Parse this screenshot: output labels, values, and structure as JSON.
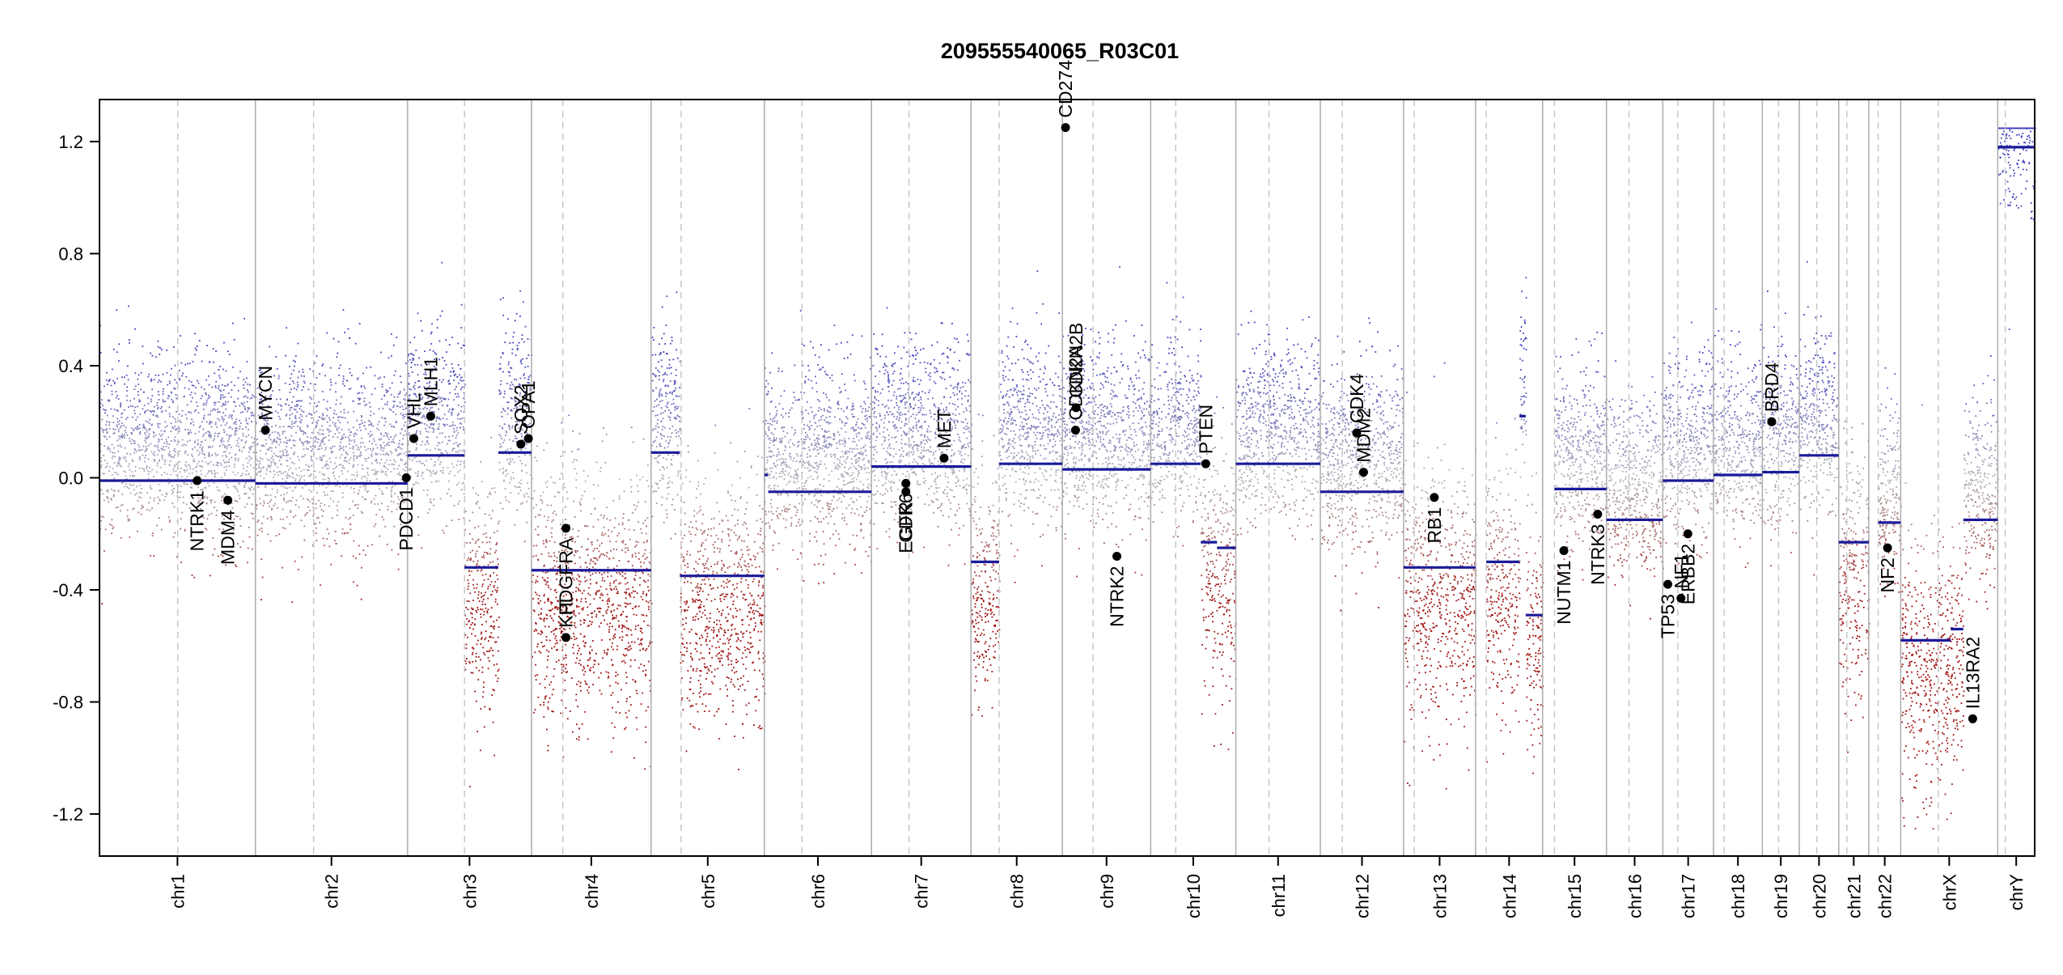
{
  "chart_data": {
    "type": "scatter",
    "title": "209555540065_R03C01",
    "xlabel": "",
    "ylabel": "",
    "ylim": [
      -1.35,
      1.35
    ],
    "yticks": [
      "-1.2",
      "-0.8",
      "-0.4",
      "0.0",
      "0.4",
      "0.8",
      "1.2"
    ],
    "ytick_values": [
      -1.2,
      -0.8,
      -0.4,
      0.0,
      0.4,
      0.8,
      1.2
    ],
    "grid": "vertical chromosome boundaries (solid) and centromeres (dashed)",
    "colors": {
      "gain": "#3b3bb5",
      "loss": "#a01010",
      "neutral": "#9a9a9a",
      "segment": "#1a1a9a",
      "gene": "#000000",
      "frame": "#000000"
    },
    "chromosomes": [
      {
        "name": "chr1",
        "length": 249,
        "centromere": 125
      },
      {
        "name": "chr2",
        "length": 243,
        "centromere": 93
      },
      {
        "name": "chr3",
        "length": 198,
        "centromere": 91
      },
      {
        "name": "chr4",
        "length": 191,
        "centromere": 50
      },
      {
        "name": "chr5",
        "length": 181,
        "centromere": 48
      },
      {
        "name": "chr6",
        "length": 171,
        "centromere": 60
      },
      {
        "name": "chr7",
        "length": 159,
        "centromere": 60
      },
      {
        "name": "chr8",
        "length": 146,
        "centromere": 45
      },
      {
        "name": "chr9",
        "length": 141,
        "centromere": 49
      },
      {
        "name": "chr10",
        "length": 136,
        "centromere": 40
      },
      {
        "name": "chr11",
        "length": 135,
        "centromere": 53
      },
      {
        "name": "chr12",
        "length": 133,
        "centromere": 35
      },
      {
        "name": "chr13",
        "length": 115,
        "centromere": 17
      },
      {
        "name": "chr14",
        "length": 107,
        "centromere": 17
      },
      {
        "name": "chr15",
        "length": 102,
        "centromere": 19
      },
      {
        "name": "chr16",
        "length": 90,
        "centromere": 36
      },
      {
        "name": "chr17",
        "length": 81,
        "centromere": 24
      },
      {
        "name": "chr18",
        "length": 78,
        "centromere": 17
      },
      {
        "name": "chr19",
        "length": 59,
        "centromere": 26
      },
      {
        "name": "chr20",
        "length": 63,
        "centromere": 28
      },
      {
        "name": "chr21",
        "length": 48,
        "centromere": 13
      },
      {
        "name": "chr22",
        "length": 51,
        "centromere": 15
      },
      {
        "name": "chrX",
        "length": 155,
        "centromere": 60
      },
      {
        "name": "chrY",
        "length": 59,
        "centromere": 12
      }
    ],
    "segments": [
      {
        "chr": "chr1",
        "start": 0,
        "end": 249,
        "value": -0.01
      },
      {
        "chr": "chr2",
        "start": 0,
        "end": 243,
        "value": -0.02
      },
      {
        "chr": "chr3",
        "start": 0,
        "end": 91,
        "value": 0.08
      },
      {
        "chr": "chr3",
        "start": 91,
        "end": 145,
        "value": -0.32
      },
      {
        "chr": "chr3",
        "start": 145,
        "end": 198,
        "value": 0.09
      },
      {
        "chr": "chr4",
        "start": 0,
        "end": 191,
        "value": -0.33
      },
      {
        "chr": "chr5",
        "start": 0,
        "end": 46,
        "value": 0.09
      },
      {
        "chr": "chr5",
        "start": 46,
        "end": 181,
        "value": -0.35
      },
      {
        "chr": "chr6",
        "start": 0,
        "end": 6,
        "value": 0.01
      },
      {
        "chr": "chr6",
        "start": 6,
        "end": 171,
        "value": -0.05
      },
      {
        "chr": "chr7",
        "start": 0,
        "end": 159,
        "value": 0.04
      },
      {
        "chr": "chr8",
        "start": 0,
        "end": 45,
        "value": -0.3
      },
      {
        "chr": "chr8",
        "start": 45,
        "end": 146,
        "value": 0.05
      },
      {
        "chr": "chr9",
        "start": 0,
        "end": 141,
        "value": 0.03
      },
      {
        "chr": "chr10",
        "start": 0,
        "end": 80,
        "value": 0.05
      },
      {
        "chr": "chr10",
        "start": 80,
        "end": 106,
        "value": -0.23
      },
      {
        "chr": "chr10",
        "start": 106,
        "end": 136,
        "value": -0.25
      },
      {
        "chr": "chr11",
        "start": 0,
        "end": 135,
        "value": 0.05
      },
      {
        "chr": "chr12",
        "start": 0,
        "end": 133,
        "value": -0.05
      },
      {
        "chr": "chr13",
        "start": 0,
        "end": 115,
        "value": -0.32
      },
      {
        "chr": "chr14",
        "start": 17,
        "end": 70,
        "value": -0.3
      },
      {
        "chr": "chr14",
        "start": 70,
        "end": 80,
        "value": 0.22
      },
      {
        "chr": "chr14",
        "start": 80,
        "end": 107,
        "value": -0.49
      },
      {
        "chr": "chr15",
        "start": 19,
        "end": 102,
        "value": -0.04
      },
      {
        "chr": "chr16",
        "start": 0,
        "end": 90,
        "value": -0.15
      },
      {
        "chr": "chr17",
        "start": 0,
        "end": 24,
        "value": -0.01
      },
      {
        "chr": "chr17",
        "start": 24,
        "end": 81,
        "value": -0.01
      },
      {
        "chr": "chr18",
        "start": 0,
        "end": 78,
        "value": 0.01
      },
      {
        "chr": "chr19",
        "start": 0,
        "end": 59,
        "value": 0.02
      },
      {
        "chr": "chr20",
        "start": 0,
        "end": 63,
        "value": 0.08
      },
      {
        "chr": "chr21",
        "start": 0,
        "end": 48,
        "value": -0.23
      },
      {
        "chr": "chr22",
        "start": 15,
        "end": 51,
        "value": -0.16
      },
      {
        "chr": "chrX",
        "start": 0,
        "end": 80,
        "value": -0.58
      },
      {
        "chr": "chrX",
        "start": 80,
        "end": 100,
        "value": -0.54
      },
      {
        "chr": "chrX",
        "start": 100,
        "end": 155,
        "value": -0.15
      },
      {
        "chr": "chrY",
        "start": 0,
        "end": 59,
        "value": 1.18
      }
    ],
    "genes": [
      {
        "name": "NTRK1",
        "chr": "chr1",
        "pos": 156,
        "value": -0.01,
        "label_side": "below"
      },
      {
        "name": "MDM4",
        "chr": "chr1",
        "pos": 205,
        "value": -0.08,
        "label_side": "below"
      },
      {
        "name": "MYCN",
        "chr": "chr2",
        "pos": 16,
        "value": 0.17,
        "label_side": "above"
      },
      {
        "name": "PDCD1",
        "chr": "chr2",
        "pos": 241,
        "value": 0.0,
        "label_side": "below"
      },
      {
        "name": "VHL",
        "chr": "chr3",
        "pos": 10,
        "value": 0.14,
        "label_side": "above"
      },
      {
        "name": "MLH1",
        "chr": "chr3",
        "pos": 37,
        "value": 0.22,
        "label_side": "above"
      },
      {
        "name": "SOX2",
        "chr": "chr3",
        "pos": 181,
        "value": 0.12,
        "label_side": "above"
      },
      {
        "name": "OPA1",
        "chr": "chr3",
        "pos": 193,
        "value": 0.14,
        "label_side": "above"
      },
      {
        "name": "PDGFRA",
        "chr": "chr4",
        "pos": 55,
        "value": -0.18,
        "label_side": "below"
      },
      {
        "name": "KIT",
        "chr": "chr4",
        "pos": 55,
        "value": -0.57,
        "label_side": "above"
      },
      {
        "name": "EGFR",
        "chr": "chr7",
        "pos": 55,
        "value": -0.05,
        "label_side": "below"
      },
      {
        "name": "CDK6",
        "chr": "chr7",
        "pos": 55,
        "value": -0.02,
        "label_side": "below"
      },
      {
        "name": "MET",
        "chr": "chr7",
        "pos": 116,
        "value": 0.07,
        "label_side": "above"
      },
      {
        "name": "CD274",
        "chr": "chr9",
        "pos": 5,
        "value": 1.25,
        "label_side": "above"
      },
      {
        "name": "CDKN2A",
        "chr": "chr9",
        "pos": 21,
        "value": 0.17,
        "label_side": "above"
      },
      {
        "name": "CDKN2B",
        "chr": "chr9",
        "pos": 22,
        "value": 0.25,
        "label_side": "above"
      },
      {
        "name": "NTRK2",
        "chr": "chr9",
        "pos": 87,
        "value": -0.28,
        "label_side": "below"
      },
      {
        "name": "PTEN",
        "chr": "chr10",
        "pos": 88,
        "value": 0.05,
        "label_side": "above"
      },
      {
        "name": "CDK4",
        "chr": "chr12",
        "pos": 58,
        "value": 0.16,
        "label_side": "above"
      },
      {
        "name": "MDM2",
        "chr": "chr12",
        "pos": 69,
        "value": 0.02,
        "label_side": "above"
      },
      {
        "name": "RB1",
        "chr": "chr13",
        "pos": 49,
        "value": -0.07,
        "label_side": "below"
      },
      {
        "name": "NUTM1",
        "chr": "chr15",
        "pos": 34,
        "value": -0.26,
        "label_side": "below"
      },
      {
        "name": "NTRK3",
        "chr": "chr15",
        "pos": 88,
        "value": -0.13,
        "label_side": "below"
      },
      {
        "name": "TP53",
        "chr": "chr17",
        "pos": 8,
        "value": -0.38,
        "label_side": "below"
      },
      {
        "name": "NF1",
        "chr": "chr17",
        "pos": 29,
        "value": -0.43,
        "label_side": "above"
      },
      {
        "name": "ERBB2",
        "chr": "chr17",
        "pos": 40,
        "value": -0.2,
        "label_side": "below"
      },
      {
        "name": "BRD4",
        "chr": "chr19",
        "pos": 15,
        "value": 0.2,
        "label_side": "above"
      },
      {
        "name": "NF2",
        "chr": "chr22",
        "pos": 30,
        "value": -0.25,
        "label_side": "below"
      },
      {
        "name": "IL13RA2",
        "chrX": true,
        "chr": "chrX",
        "pos": 115,
        "value": -0.86,
        "label_side": "above"
      }
    ],
    "probe_note": "Small per-probe points rendered procedurally around segment levels; colored blue (gain) to grey to red (loss)."
  }
}
